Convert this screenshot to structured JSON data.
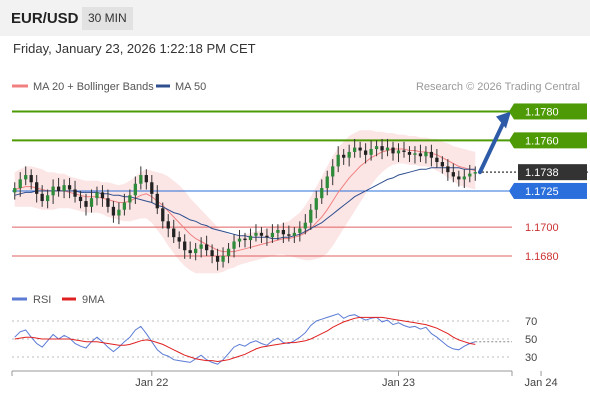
{
  "header": {
    "pair": "EUR/USD",
    "timeframe": "30 MIN"
  },
  "datetime": "Friday, January 23, 2026 1:22:18 PM CET",
  "legend": {
    "main": [
      {
        "label": "MA 20 + Bollinger Bands",
        "color": "#f08080"
      },
      {
        "label": "MA 50",
        "color": "#2f4f8f"
      }
    ],
    "rsi": [
      {
        "label": "RSI",
        "color": "#5b7bd5"
      },
      {
        "label": "9MA",
        "color": "#e02020"
      }
    ]
  },
  "copyright": "Research © 2026 Trading Central",
  "chart_data": {
    "type": "candlestick",
    "instrument": "EUR/USD",
    "timeframe": "30 MIN",
    "price_range": [
      1.1662,
      1.179
    ],
    "current_price": 1.1738,
    "x_labels": [
      {
        "label": "Jan 22",
        "index": 25
      },
      {
        "label": "Jan 23",
        "index": 70
      },
      {
        "label": "Jan 24",
        "index": 96
      }
    ],
    "levels": [
      {
        "label": "1.1780",
        "value": 1.178,
        "kind": "resistance",
        "color": "#4e9a06"
      },
      {
        "label": "1.1760",
        "value": 1.176,
        "kind": "resistance",
        "color": "#4e9a06"
      },
      {
        "label": "1.1738",
        "value": 1.1738,
        "kind": "current",
        "color": "#333333"
      },
      {
        "label": "1.1725",
        "value": 1.1725,
        "kind": "pivot",
        "color": "#2a6fdb"
      },
      {
        "label": "1.1700",
        "value": 1.17,
        "kind": "support",
        "color": "#e06060"
      },
      {
        "label": "1.1680",
        "value": 1.168,
        "kind": "support",
        "color": "#e06060"
      }
    ],
    "forecast_arrow": {
      "from": 1.1738,
      "to": 1.178
    },
    "close": [
      1.1727,
      1.1733,
      1.1736,
      1.1731,
      1.1723,
      1.1718,
      1.1722,
      1.1728,
      1.1725,
      1.1729,
      1.1726,
      1.1721,
      1.1718,
      1.1714,
      1.172,
      1.1724,
      1.172,
      1.1714,
      1.1708,
      1.1712,
      1.1717,
      1.1722,
      1.173,
      1.1736,
      1.1731,
      1.1723,
      1.1713,
      1.1704,
      1.1699,
      1.1693,
      1.169,
      1.1684,
      1.1682,
      1.1685,
      1.1688,
      1.1684,
      1.168,
      1.1676,
      1.168,
      1.1685,
      1.169,
      1.1692,
      1.1691,
      1.1694,
      1.1696,
      1.1694,
      1.1693,
      1.1696,
      1.1698,
      1.1695,
      1.1694,
      1.1696,
      1.1699,
      1.1703,
      1.1712,
      1.172,
      1.1727,
      1.1735,
      1.1742,
      1.175,
      1.1748,
      1.1752,
      1.1755,
      1.1753,
      1.175,
      1.1754,
      1.1756,
      1.1753,
      1.1755,
      1.1751,
      1.1753,
      1.1752,
      1.175,
      1.1751,
      1.1749,
      1.1752,
      1.1748,
      1.1745,
      1.1742,
      1.1738,
      1.1735,
      1.1733,
      1.1735,
      1.1737,
      1.1738
    ],
    "ma20": [
      1.1726,
      1.1727,
      1.1728,
      1.1728,
      1.1727,
      1.1726,
      1.1725,
      1.1725,
      1.1725,
      1.1725,
      1.1724,
      1.1723,
      1.1722,
      1.1721,
      1.1721,
      1.1721,
      1.172,
      1.1719,
      1.1718,
      1.1717,
      1.1717,
      1.1718,
      1.172,
      1.1722,
      1.1723,
      1.1721,
      1.1718,
      1.1715,
      1.1711,
      1.1707,
      1.1703,
      1.1699,
      1.1695,
      1.1692,
      1.169,
      1.1688,
      1.1686,
      1.1684,
      1.1683,
      1.1683,
      1.1683,
      1.1684,
      1.1685,
      1.1686,
      1.1687,
      1.1688,
      1.1689,
      1.169,
      1.1691,
      1.1692,
      1.1692,
      1.1693,
      1.1694,
      1.1696,
      1.1699,
      1.1703,
      1.1707,
      1.1712,
      1.1718,
      1.1724,
      1.1729,
      1.1734,
      1.1738,
      1.1742,
      1.1745,
      1.1748,
      1.175,
      1.1752,
      1.1753,
      1.1754,
      1.1754,
      1.1754,
      1.1753,
      1.1753,
      1.1752,
      1.1752,
      1.1751,
      1.175,
      1.1748,
      1.1746,
      1.1744,
      1.1742,
      1.1741,
      1.174,
      1.1739
    ],
    "ma50": [
      1.1722,
      1.1723,
      1.1724,
      1.1724,
      1.1725,
      1.1725,
      1.1725,
      1.1725,
      1.1725,
      1.1725,
      1.1725,
      1.1725,
      1.1724,
      1.1724,
      1.1724,
      1.1724,
      1.1723,
      1.1723,
      1.1722,
      1.1722,
      1.1721,
      1.1721,
      1.172,
      1.1719,
      1.1718,
      1.1717,
      1.1715,
      1.1714,
      1.1712,
      1.171,
      1.1709,
      1.1707,
      1.1705,
      1.1704,
      1.1702,
      1.1701,
      1.1699,
      1.1698,
      1.1697,
      1.1696,
      1.1695,
      1.1694,
      1.1694,
      1.1693,
      1.1693,
      1.1693,
      1.1693,
      1.1692,
      1.1692,
      1.1693,
      1.1693,
      1.1694,
      1.1695,
      1.1697,
      1.1699,
      1.1701,
      1.1703,
      1.1706,
      1.1709,
      1.1712,
      1.1715,
      1.1718,
      1.1721,
      1.1723,
      1.1725,
      1.1727,
      1.1729,
      1.1731,
      1.1733,
      1.1734,
      1.1736,
      1.1737,
      1.1738,
      1.1739,
      1.174,
      1.174,
      1.1741,
      1.1741,
      1.1741,
      1.1741,
      1.1741,
      1.1741,
      1.174,
      1.174,
      1.174
    ],
    "bb_width": [
      0.0012,
      0.0013,
      0.0014,
      0.0014,
      0.0014,
      0.0014,
      0.0013,
      0.0013,
      0.0012,
      0.0012,
      0.0011,
      0.0011,
      0.0011,
      0.0011,
      0.0011,
      0.0011,
      0.0011,
      0.0012,
      0.0012,
      0.0012,
      0.0013,
      0.0014,
      0.0015,
      0.0016,
      0.0017,
      0.0018,
      0.002,
      0.0022,
      0.0024,
      0.0025,
      0.0026,
      0.0026,
      0.0025,
      0.0024,
      0.0022,
      0.002,
      0.0018,
      0.0016,
      0.0014,
      0.0012,
      0.0011,
      0.001,
      0.001,
      0.001,
      0.001,
      0.001,
      0.001,
      0.001,
      0.001,
      0.0011,
      0.0012,
      0.0014,
      0.0016,
      0.0019,
      0.0022,
      0.0025,
      0.0028,
      0.003,
      0.0031,
      0.0031,
      0.003,
      0.0029,
      0.0027,
      0.0025,
      0.0022,
      0.0019,
      0.0016,
      0.0014,
      0.0012,
      0.0011,
      0.001,
      0.001,
      0.001,
      0.001,
      0.001,
      0.001,
      0.001,
      0.0011,
      0.0011,
      0.0012,
      0.0012,
      0.0013,
      0.0013,
      0.0013,
      0.0013
    ],
    "rsi": {
      "range": [
        20,
        80
      ],
      "ticks": [
        70,
        50,
        30
      ],
      "rsi": [
        52,
        58,
        60,
        52,
        45,
        41,
        48,
        55,
        50,
        54,
        51,
        45,
        42,
        40,
        47,
        52,
        47,
        41,
        36,
        41,
        47,
        52,
        60,
        64,
        56,
        47,
        38,
        33,
        31,
        27,
        26,
        25,
        24,
        28,
        32,
        27,
        24,
        22,
        27,
        34,
        41,
        44,
        42,
        46,
        48,
        45,
        43,
        48,
        51,
        46,
        45,
        48,
        52,
        57,
        65,
        70,
        72,
        74,
        76,
        78,
        73,
        76,
        77,
        74,
        71,
        73,
        74,
        69,
        71,
        66,
        68,
        65,
        63,
        64,
        61,
        63,
        56,
        52,
        47,
        42,
        39,
        38,
        42,
        45,
        47
      ],
      "ma9": [
        50,
        51,
        52,
        52,
        51,
        50,
        50,
        50,
        50,
        50,
        50,
        49,
        48,
        47,
        47,
        47,
        46,
        45,
        44,
        43,
        43,
        44,
        46,
        48,
        49,
        48,
        46,
        44,
        41,
        38,
        35,
        32,
        30,
        28,
        27,
        26,
        26,
        25,
        26,
        27,
        29,
        31,
        33,
        36,
        39,
        41,
        42,
        43,
        44,
        45,
        46,
        46,
        47,
        48,
        50,
        53,
        56,
        59,
        63,
        66,
        69,
        71,
        73,
        74,
        74,
        74,
        74,
        74,
        73,
        72,
        71,
        70,
        69,
        68,
        67,
        66,
        64,
        62,
        59,
        56,
        52,
        49,
        47,
        45,
        44
      ]
    }
  }
}
